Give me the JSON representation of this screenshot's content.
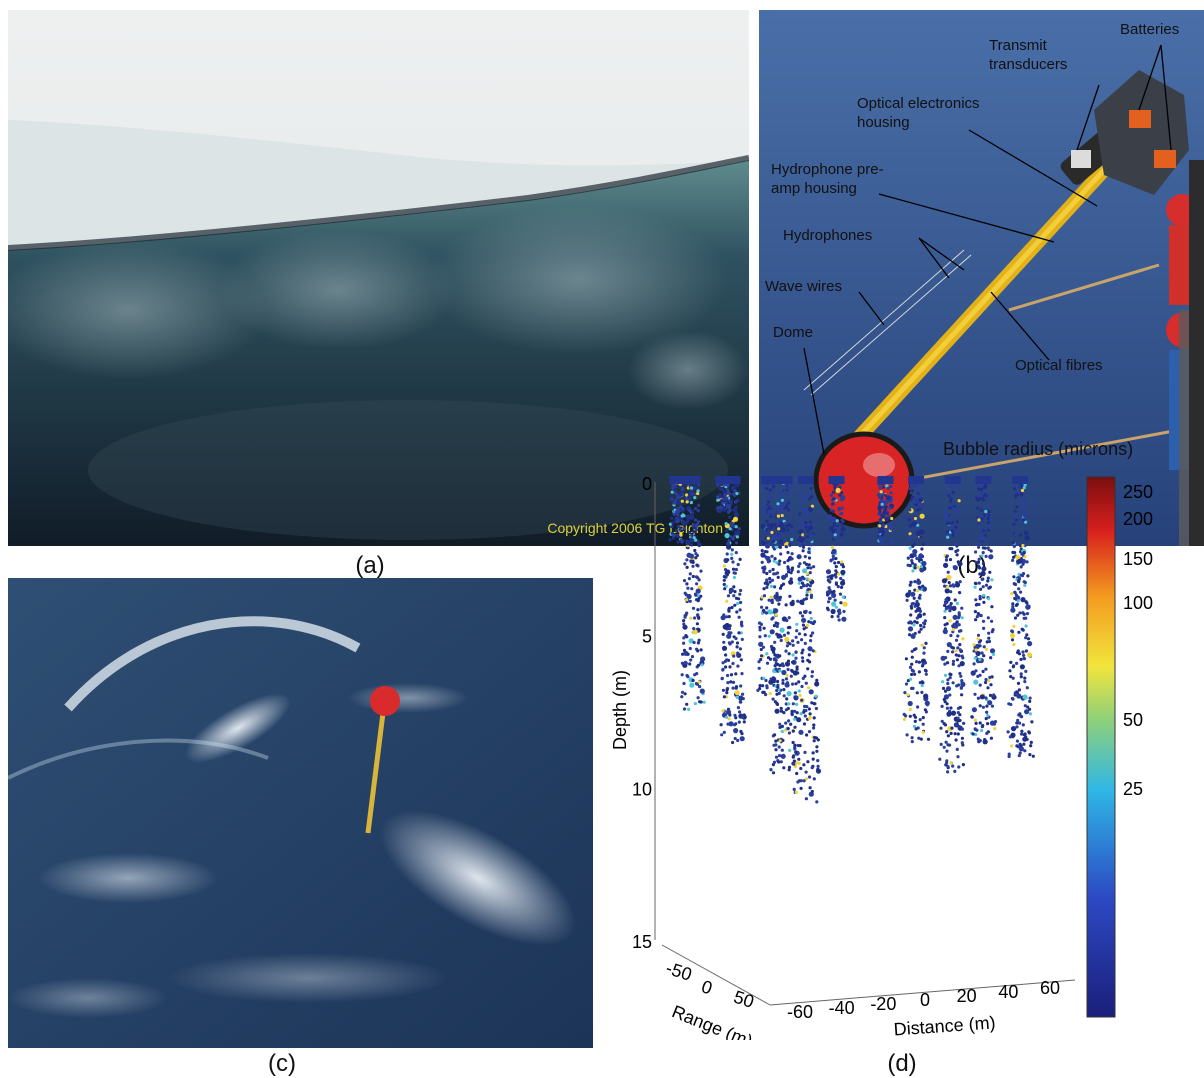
{
  "captions": {
    "a": "(a)",
    "b": "(b)",
    "c": "(c)",
    "d": "(d)"
  },
  "panel_a": {
    "copyright": "Copyright 2006  TG Leighton"
  },
  "panel_b": {
    "labels": {
      "batteries": "Batteries",
      "transmit": "Transmit\ntransducers",
      "optical_housing": "Optical electronics\nhousing",
      "hydro_preamp": "Hydrophone pre-\namp housing",
      "hydrophones": "Hydrophones",
      "wave_wires": "Wave wires",
      "dome": "Dome",
      "optical_fibres": "Optical fibres"
    }
  },
  "chart_data": {
    "type": "scatter",
    "title": "",
    "colorbar_label": "Bubble radius (microns)",
    "colorbar_ticks": [
      "250",
      "200",
      "150",
      "100",
      "50",
      "25"
    ],
    "ylabel": "Depth (m)",
    "y_ticks": [
      "0",
      "5",
      "10",
      "15"
    ],
    "xlabel": "Distance (m)",
    "x_ticks": [
      "-60",
      "-40",
      "-20",
      "0",
      "20",
      "40",
      "60"
    ],
    "zlabel": "Range (m)",
    "z_ticks": [
      "-50",
      "0",
      "50"
    ],
    "ylim": [
      0,
      15
    ],
    "xlim": [
      -65,
      65
    ],
    "plumes": [
      {
        "x": -60,
        "depth_max": 2.0
      },
      {
        "x": -55,
        "depth_max": 7.5
      },
      {
        "x": -45,
        "depth_max": 1.0
      },
      {
        "x": -42,
        "depth_max": 8.5
      },
      {
        "x": -30,
        "depth_max": 7.0
      },
      {
        "x": -25,
        "depth_max": 9.5
      },
      {
        "x": -18,
        "depth_max": 10.5
      },
      {
        "x": -8,
        "depth_max": 4.5
      },
      {
        "x": 8,
        "depth_max": 2.0
      },
      {
        "x": 18,
        "depth_max": 8.5
      },
      {
        "x": 30,
        "depth_max": 9.5
      },
      {
        "x": 40,
        "depth_max": 8.5
      },
      {
        "x": 52,
        "depth_max": 9.0
      }
    ]
  }
}
